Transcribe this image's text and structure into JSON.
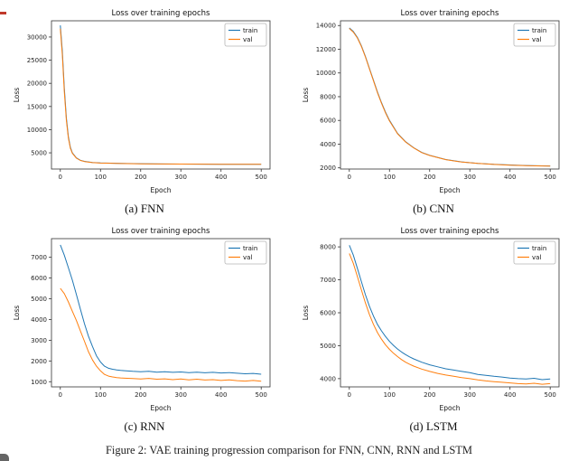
{
  "figure": {
    "captions": {
      "a": "(a) FNN",
      "b": "(b) CNN",
      "c": "(c) RNN",
      "d": "(d) LSTM"
    },
    "figure_caption": "Figure 2: VAE training progression comparison for FNN, CNN, RNN and LSTM"
  },
  "colors": {
    "train": "#1f77b4",
    "val": "#ff7f0e"
  },
  "chart_data": [
    {
      "type": "line",
      "name": "FNN",
      "title": "Loss over training epochs",
      "xlabel": "Epoch",
      "ylabel": "Loss",
      "xlim": [
        -22,
        522
      ],
      "ylim": [
        1500,
        33500
      ],
      "xticks": [
        0,
        100,
        200,
        300,
        400,
        500
      ],
      "yticks": [
        5000,
        10000,
        15000,
        20000,
        25000,
        30000
      ],
      "grid": false,
      "legend_position": "upper right",
      "x": [
        0,
        5,
        10,
        15,
        20,
        25,
        30,
        40,
        50,
        60,
        80,
        100,
        150,
        200,
        250,
        300,
        350,
        400,
        450,
        500
      ],
      "series": [
        {
          "name": "train",
          "color": "#1f77b4",
          "values": [
            32500,
            27000,
            19000,
            12500,
            8500,
            6200,
            5000,
            3900,
            3400,
            3150,
            2900,
            2800,
            2700,
            2650,
            2600,
            2580,
            2560,
            2540,
            2530,
            2520
          ]
        },
        {
          "name": "val",
          "color": "#ff7f0e",
          "values": [
            31800,
            26200,
            18200,
            12000,
            8200,
            6000,
            4900,
            3850,
            3350,
            3120,
            2880,
            2780,
            2690,
            2640,
            2590,
            2570,
            2550,
            2530,
            2520,
            2510
          ]
        }
      ]
    },
    {
      "type": "line",
      "name": "CNN",
      "title": "Loss over training epochs",
      "xlabel": "Epoch",
      "ylabel": "Loss",
      "xlim": [
        -22,
        522
      ],
      "ylim": [
        1900,
        14400
      ],
      "xticks": [
        0,
        100,
        200,
        300,
        400,
        500
      ],
      "yticks": [
        2000,
        4000,
        6000,
        8000,
        10000,
        12000,
        14000
      ],
      "grid": false,
      "legend_position": "upper right",
      "x": [
        0,
        10,
        20,
        30,
        40,
        50,
        60,
        70,
        80,
        90,
        100,
        120,
        140,
        160,
        180,
        200,
        240,
        280,
        320,
        360,
        400,
        440,
        480,
        500
      ],
      "series": [
        {
          "name": "train",
          "color": "#1f77b4",
          "values": [
            13800,
            13500,
            13000,
            12300,
            11400,
            10400,
            9400,
            8400,
            7500,
            6700,
            6000,
            4900,
            4200,
            3700,
            3300,
            3050,
            2700,
            2500,
            2380,
            2300,
            2240,
            2200,
            2170,
            2160
          ]
        },
        {
          "name": "val",
          "color": "#ff7f0e",
          "values": [
            13750,
            13450,
            12950,
            12250,
            11350,
            10350,
            9350,
            8350,
            7450,
            6650,
            5950,
            4870,
            4180,
            3680,
            3290,
            3040,
            2690,
            2490,
            2370,
            2290,
            2230,
            2190,
            2160,
            2150
          ]
        }
      ]
    },
    {
      "type": "line",
      "name": "RNN",
      "title": "Loss over training epochs",
      "xlabel": "Epoch",
      "ylabel": "Loss",
      "xlim": [
        -22,
        522
      ],
      "ylim": [
        750,
        7900
      ],
      "xticks": [
        0,
        100,
        200,
        300,
        400,
        500
      ],
      "yticks": [
        1000,
        2000,
        3000,
        4000,
        5000,
        6000,
        7000
      ],
      "grid": false,
      "legend_position": "upper right",
      "x": [
        0,
        10,
        20,
        30,
        40,
        50,
        60,
        70,
        80,
        90,
        100,
        110,
        120,
        130,
        140,
        150,
        160,
        180,
        200,
        220,
        240,
        260,
        280,
        300,
        320,
        340,
        360,
        380,
        400,
        420,
        440,
        460,
        480,
        500
      ],
      "series": [
        {
          "name": "train",
          "color": "#1f77b4",
          "values": [
            7600,
            7100,
            6500,
            5900,
            5200,
            4500,
            3800,
            3200,
            2700,
            2250,
            1950,
            1750,
            1650,
            1600,
            1570,
            1550,
            1530,
            1500,
            1480,
            1500,
            1460,
            1480,
            1450,
            1470,
            1440,
            1460,
            1430,
            1450,
            1420,
            1440,
            1410,
            1380,
            1400,
            1360
          ]
        },
        {
          "name": "val",
          "color": "#ff7f0e",
          "values": [
            5500,
            5250,
            4850,
            4400,
            3950,
            3450,
            2950,
            2450,
            2050,
            1750,
            1520,
            1350,
            1270,
            1230,
            1200,
            1180,
            1170,
            1150,
            1130,
            1160,
            1120,
            1140,
            1100,
            1130,
            1090,
            1120,
            1080,
            1100,
            1060,
            1090,
            1050,
            1030,
            1060,
            1020
          ]
        }
      ]
    },
    {
      "type": "line",
      "name": "LSTM",
      "title": "Loss over training epochs",
      "xlabel": "Epoch",
      "ylabel": "Loss",
      "xlim": [
        -22,
        522
      ],
      "ylim": [
        3750,
        8250
      ],
      "xticks": [
        0,
        100,
        200,
        300,
        400,
        500
      ],
      "yticks": [
        4000,
        5000,
        6000,
        7000,
        8000
      ],
      "grid": false,
      "legend_position": "upper right",
      "x": [
        0,
        10,
        20,
        30,
        40,
        50,
        60,
        70,
        80,
        90,
        100,
        110,
        120,
        130,
        140,
        150,
        160,
        180,
        200,
        220,
        240,
        260,
        280,
        300,
        320,
        340,
        360,
        380,
        400,
        420,
        440,
        460,
        480,
        500
      ],
      "series": [
        {
          "name": "train",
          "color": "#1f77b4",
          "values": [
            8050,
            7750,
            7350,
            6950,
            6550,
            6200,
            5900,
            5650,
            5450,
            5280,
            5130,
            5010,
            4900,
            4810,
            4730,
            4660,
            4600,
            4500,
            4420,
            4360,
            4300,
            4260,
            4220,
            4180,
            4130,
            4100,
            4070,
            4050,
            4020,
            4000,
            3990,
            4010,
            3970,
            3990
          ]
        },
        {
          "name": "val",
          "color": "#ff7f0e",
          "values": [
            7800,
            7500,
            7100,
            6700,
            6300,
            5950,
            5650,
            5400,
            5200,
            5030,
            4890,
            4770,
            4670,
            4580,
            4500,
            4440,
            4380,
            4290,
            4220,
            4160,
            4110,
            4070,
            4030,
            4000,
            3960,
            3930,
            3910,
            3890,
            3870,
            3850,
            3840,
            3860,
            3830,
            3850
          ]
        }
      ]
    }
  ]
}
